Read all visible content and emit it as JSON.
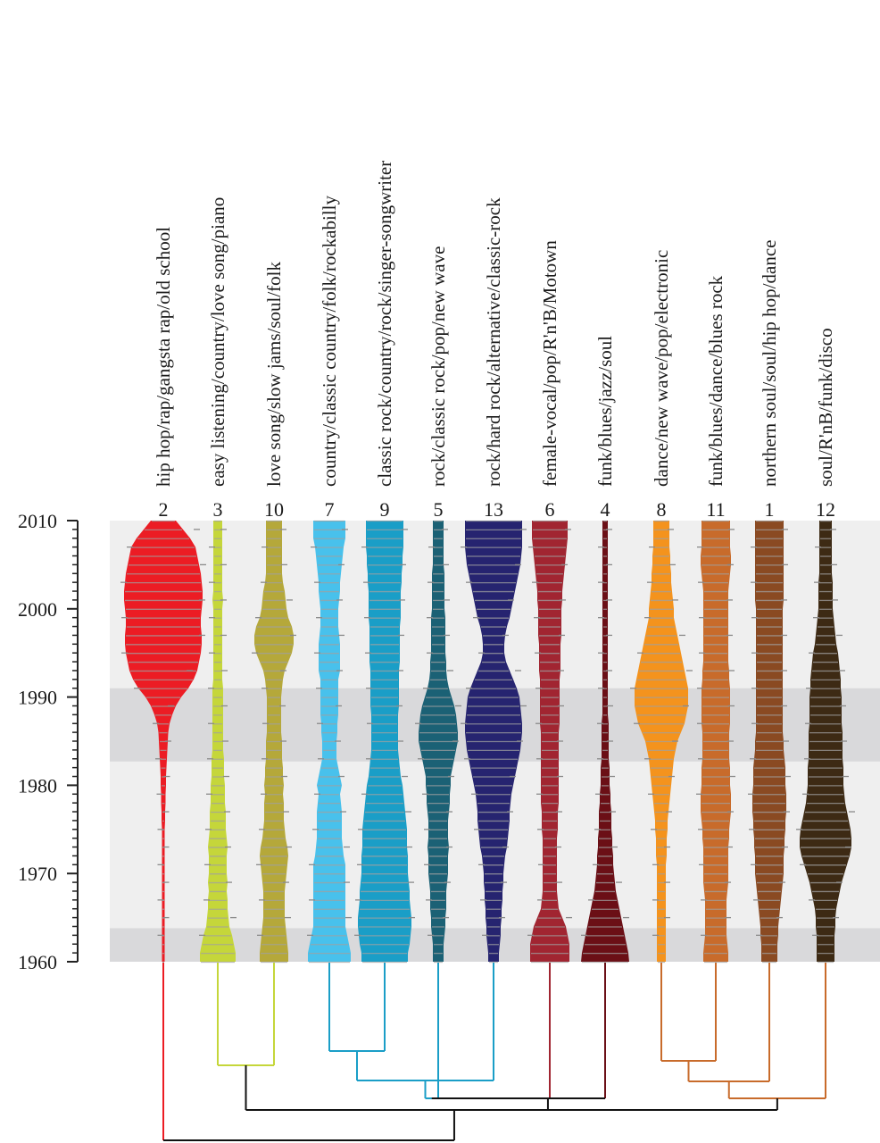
{
  "chart_data": {
    "type": "violin-dendrogram",
    "y_axis": {
      "min": 1960,
      "max": 2010,
      "ticks": [
        1960,
        1970,
        1980,
        1990,
        2000,
        2010
      ]
    },
    "shaded_bands": [
      {
        "from": 1960,
        "to": 1963.8
      },
      {
        "from": 1982.7,
        "to": 1991
      }
    ],
    "columns": [
      {
        "id": "2",
        "label": "hip hop/rap/gangsta rap/old school",
        "color": "#ec1c24",
        "widths": [
          1.5,
          1.5,
          1.5,
          1.5,
          1.5,
          1.5,
          1.5,
          1.5,
          1.5,
          1.5,
          1.5,
          1.5,
          1.5,
          1.5,
          1.5,
          1.5,
          2,
          2,
          2.5,
          2.5,
          3,
          3,
          3.5,
          4,
          4.5,
          5,
          5.5,
          7,
          10,
          14,
          20,
          28,
          34,
          38,
          40,
          42,
          43,
          43,
          42,
          42,
          43,
          44,
          44,
          43,
          42,
          40,
          38,
          36,
          30,
          22,
          14
        ]
      },
      {
        "id": "3",
        "label": "easy listening/country/love song/piano",
        "color": "#c5d63a",
        "widths": [
          20,
          20,
          18,
          16,
          13,
          12,
          11,
          11,
          10,
          11,
          10,
          10,
          10,
          11,
          10,
          9,
          9,
          9,
          8,
          8,
          8,
          7,
          7,
          7,
          6,
          6,
          6,
          6,
          6,
          6,
          6,
          6,
          5,
          5,
          5,
          5,
          5,
          5,
          5,
          5,
          5,
          6,
          5,
          5,
          5,
          5,
          5,
          5,
          5,
          5,
          5
        ]
      },
      {
        "id": "10",
        "label": "love song/slow jams/soul/folk",
        "color": "#b5a83a",
        "widths": [
          16,
          16,
          15,
          14,
          13,
          12,
          12,
          12,
          12,
          13,
          14,
          15,
          16,
          15,
          13,
          12,
          11,
          11,
          11,
          10,
          11,
          10,
          10,
          9,
          9,
          9,
          8,
          8,
          8,
          8,
          8,
          9,
          10,
          12,
          16,
          20,
          22,
          22,
          20,
          16,
          14,
          13,
          12,
          10,
          9,
          9,
          9,
          9,
          9,
          9,
          9
        ]
      },
      {
        "id": "7",
        "label": "country/classic country/folk/rockabilly",
        "color": "#48c1ec",
        "widths": [
          24,
          24,
          22,
          20,
          18,
          18,
          18,
          18,
          18,
          18,
          18,
          18,
          16,
          15,
          14,
          14,
          14,
          14,
          13,
          12,
          14,
          12,
          10,
          8,
          8,
          8,
          9,
          9,
          10,
          10,
          10,
          10,
          10,
          12,
          12,
          12,
          12,
          11,
          10,
          10,
          10,
          11,
          12,
          12,
          13,
          14,
          15,
          16,
          18,
          18,
          18
        ]
      },
      {
        "id": "9",
        "label": "classic rock/country/rock/singer-songwriter",
        "color": "#1a9ec7",
        "widths": [
          26,
          26,
          28,
          29,
          30,
          30,
          29,
          28,
          28,
          27,
          26,
          26,
          26,
          25,
          25,
          25,
          24,
          23,
          22,
          21,
          20,
          18,
          17,
          16,
          15,
          15,
          15,
          15,
          15,
          16,
          16,
          16,
          16,
          16,
          17,
          17,
          17,
          17,
          17,
          18,
          18,
          18,
          18,
          19,
          19,
          20,
          20,
          21,
          21,
          21,
          21
        ]
      },
      {
        "id": "5",
        "label": "rock/classic rock/pop/new wave",
        "color": "#1b6175",
        "widths": [
          6,
          6,
          6,
          7,
          8,
          8,
          9,
          9,
          9,
          10,
          11,
          11,
          11,
          12,
          11,
          11,
          11,
          12,
          13,
          13,
          14,
          14,
          16,
          18,
          20,
          22,
          22,
          21,
          20,
          18,
          15,
          12,
          10,
          9,
          9,
          8,
          8,
          8,
          8,
          8,
          7,
          7,
          7,
          7,
          7,
          6,
          6,
          6,
          6,
          6,
          6
        ]
      },
      {
        "id": "13",
        "label": "rock/hard rock/alternative/classic-rock",
        "color": "#262470",
        "widths": [
          6,
          6,
          7,
          8,
          8,
          9,
          9,
          10,
          10,
          11,
          11,
          12,
          13,
          15,
          16,
          17,
          18,
          18,
          19,
          20,
          22,
          24,
          26,
          28,
          30,
          31,
          32,
          32,
          31,
          30,
          29,
          26,
          22,
          18,
          14,
          12,
          12,
          13,
          15,
          18,
          20,
          22,
          24,
          26,
          28,
          30,
          31,
          32,
          32,
          32,
          32
        ]
      },
      {
        "id": "6",
        "label": "female-vocal/pop/R'n'B/Motown",
        "color": "#a12531",
        "widths": [
          22,
          22,
          22,
          20,
          18,
          14,
          10,
          9,
          8,
          8,
          8,
          8,
          8,
          8,
          8,
          9,
          9,
          9,
          10,
          10,
          10,
          10,
          10,
          10,
          10,
          10,
          10,
          11,
          11,
          11,
          11,
          11,
          11,
          12,
          12,
          12,
          12,
          13,
          13,
          13,
          13,
          14,
          14,
          15,
          16,
          17,
          18,
          19,
          20,
          20,
          20
        ]
      },
      {
        "id": "4",
        "label": "funk/blues/jazz/soul",
        "color": "#6b0f16",
        "widths": [
          27,
          26,
          24,
          22,
          20,
          18,
          16,
          14,
          12,
          11,
          10,
          9,
          9,
          8,
          8,
          7,
          7,
          7,
          6,
          6,
          5,
          5,
          5,
          4,
          4,
          4,
          4,
          4,
          3,
          3,
          3,
          3,
          3,
          3,
          3,
          3,
          3,
          3,
          3,
          3,
          3,
          3,
          3,
          3,
          3,
          3,
          3,
          3,
          3,
          3,
          3
        ]
      },
      {
        "id": "8",
        "label": "dance/new wave/pop/electronic",
        "color": "#f4931d",
        "widths": [
          5,
          5,
          5,
          5,
          5,
          5,
          5,
          5,
          5,
          5,
          5,
          5,
          6,
          6,
          6,
          7,
          7,
          8,
          9,
          10,
          11,
          12,
          13,
          14,
          16,
          18,
          22,
          26,
          28,
          30,
          30,
          30,
          28,
          26,
          24,
          22,
          20,
          18,
          16,
          14,
          14,
          13,
          12,
          11,
          11,
          10,
          10,
          9,
          9,
          9,
          9
        ]
      },
      {
        "id": "11",
        "label": "funk/blues/dance/blues rock",
        "color": "#c86b2b",
        "widths": [
          14,
          14,
          13,
          12,
          12,
          12,
          12,
          12,
          13,
          14,
          14,
          14,
          14,
          14,
          15,
          15,
          16,
          17,
          17,
          17,
          16,
          16,
          16,
          15,
          15,
          15,
          15,
          16,
          16,
          16,
          16,
          16,
          15,
          15,
          14,
          14,
          14,
          14,
          14,
          14,
          14,
          14,
          14,
          15,
          16,
          17,
          17,
          16,
          16,
          16,
          16
        ]
      },
      {
        "id": "1",
        "label": "northern soul/soul/hip hop/dance",
        "color": "#8a4a22",
        "widths": [
          9,
          9,
          9,
          10,
          10,
          11,
          12,
          13,
          14,
          15,
          16,
          16,
          16,
          17,
          17,
          18,
          18,
          19,
          19,
          19,
          18,
          18,
          18,
          17,
          16,
          16,
          15,
          15,
          15,
          15,
          15,
          15,
          15,
          15,
          15,
          15,
          15,
          15,
          15,
          15,
          15,
          16,
          16,
          16,
          16,
          16,
          16,
          16,
          16,
          16,
          16
        ]
      },
      {
        "id": "12",
        "label": "soul/R'nB/funk/disco",
        "color": "#3d2a14",
        "widths": [
          10,
          10,
          10,
          10,
          11,
          11,
          12,
          14,
          16,
          18,
          21,
          24,
          27,
          29,
          29,
          28,
          26,
          24,
          22,
          21,
          20,
          20,
          20,
          19,
          19,
          19,
          19,
          18,
          18,
          18,
          18,
          17,
          17,
          16,
          15,
          14,
          12,
          11,
          10,
          9,
          8,
          8,
          8,
          8,
          7,
          7,
          7,
          7,
          7,
          7,
          7
        ]
      }
    ],
    "dendrogram": {
      "leaves": [
        "2",
        "3",
        "10",
        "7",
        "9",
        "5",
        "13",
        "6",
        "4",
        "8",
        "11",
        "1",
        "12"
      ],
      "merges": [
        {
          "a": "3",
          "b": "10",
          "id": "a",
          "color": "#c5d63a"
        },
        {
          "a": "7",
          "b": "9",
          "id": "b",
          "color": "#1a9ec7"
        },
        {
          "a": "b",
          "b": "13",
          "id": "c",
          "color": "#1a9ec7"
        },
        {
          "a": "8",
          "b": "11",
          "id": "d",
          "color": "#c86b2b"
        },
        {
          "a": "d",
          "b": "1",
          "id": "e",
          "color": "#c86b2b"
        },
        {
          "a": "c",
          "b": "5",
          "id": "f",
          "color": "#1a9ec7"
        },
        {
          "a": "e",
          "b": "12",
          "id": "g",
          "color": "#c86b2b"
        },
        {
          "a": "f",
          "b": "6",
          "id": "h",
          "color": "#111111"
        },
        {
          "a": "h",
          "b": "4",
          "id": "i",
          "color": "#111111"
        },
        {
          "a": "i",
          "b": "g",
          "id": "j",
          "color": "#111111"
        },
        {
          "a": "a",
          "b": "j",
          "id": "k",
          "color": "#111111"
        },
        {
          "a": "2",
          "b": "k",
          "id": "l",
          "color": "#111111"
        }
      ]
    }
  }
}
